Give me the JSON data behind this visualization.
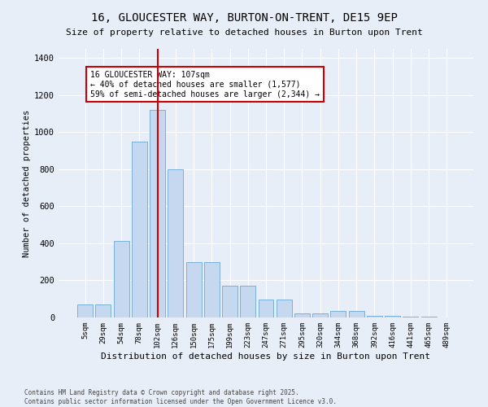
{
  "title": "16, GLOUCESTER WAY, BURTON-ON-TRENT, DE15 9EP",
  "subtitle": "Size of property relative to detached houses in Burton upon Trent",
  "xlabel": "Distribution of detached houses by size in Burton upon Trent",
  "ylabel": "Number of detached properties",
  "footer_line1": "Contains HM Land Registry data © Crown copyright and database right 2025.",
  "footer_line2": "Contains public sector information licensed under the Open Government Licence v3.0.",
  "categories": [
    "5sqm",
    "29sqm",
    "54sqm",
    "78sqm",
    "102sqm",
    "126sqm",
    "150sqm",
    "175sqm",
    "199sqm",
    "223sqm",
    "247sqm",
    "271sqm",
    "295sqm",
    "320sqm",
    "344sqm",
    "368sqm",
    "392sqm",
    "416sqm",
    "441sqm",
    "465sqm",
    "489sqm"
  ],
  "values": [
    70,
    70,
    415,
    950,
    1120,
    800,
    300,
    300,
    170,
    170,
    95,
    95,
    22,
    22,
    35,
    35,
    8,
    8,
    4,
    4,
    2
  ],
  "bar_color": "#c5d8f0",
  "bar_edge_color": "#7ab0d8",
  "background_color": "#e8eef8",
  "grid_color": "#ffffff",
  "annotation_box_color": "#ffffff",
  "annotation_border_color": "#cc0000",
  "vline_color": "#cc0000",
  "vline_x_index": 4,
  "annotation_text_line1": "16 GLOUCESTER WAY: 107sqm",
  "annotation_text_line2": "← 40% of detached houses are smaller (1,577)",
  "annotation_text_line3": "59% of semi-detached houses are larger (2,344) →",
  "ylim": [
    0,
    1450
  ],
  "yticks": [
    0,
    200,
    400,
    600,
    800,
    1000,
    1200,
    1400
  ]
}
